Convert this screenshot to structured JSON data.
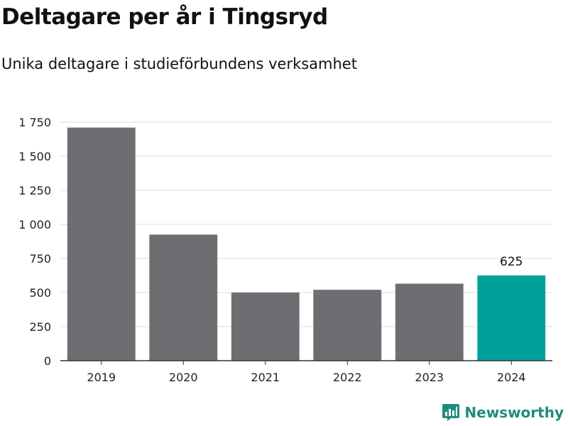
{
  "header": {
    "title": "Deltagare per år i Tingsryd",
    "subtitle": "Unika deltagare i studieförbundens verksamhet"
  },
  "brand": {
    "name": "Newsworthy",
    "icon": "bar-chart-icon",
    "color": "#1f8c80"
  },
  "chart_data": {
    "type": "bar",
    "title": "Deltagare per år i Tingsryd",
    "subtitle": "Unika deltagare i studieförbundens verksamhet",
    "xlabel": "",
    "ylabel": "",
    "categories": [
      "2019",
      "2020",
      "2021",
      "2022",
      "2023",
      "2024"
    ],
    "values": [
      1710,
      925,
      500,
      520,
      565,
      625
    ],
    "ylim": [
      0,
      1750
    ],
    "yticks": [
      0,
      250,
      500,
      750,
      1000,
      1250,
      1500,
      1750
    ],
    "ytick_labels": [
      "0",
      "250",
      "500",
      "750",
      "1 000",
      "1 250",
      "1 500",
      "1 750"
    ],
    "grid": true,
    "legend": "none",
    "colors": {
      "default": "#6e6d72",
      "highlight": "#00a19a",
      "grid": "#dcdcdc",
      "axis": "#333333"
    },
    "highlight_index": 5,
    "data_labels": [
      {
        "index": 5,
        "text": "625"
      }
    ]
  }
}
